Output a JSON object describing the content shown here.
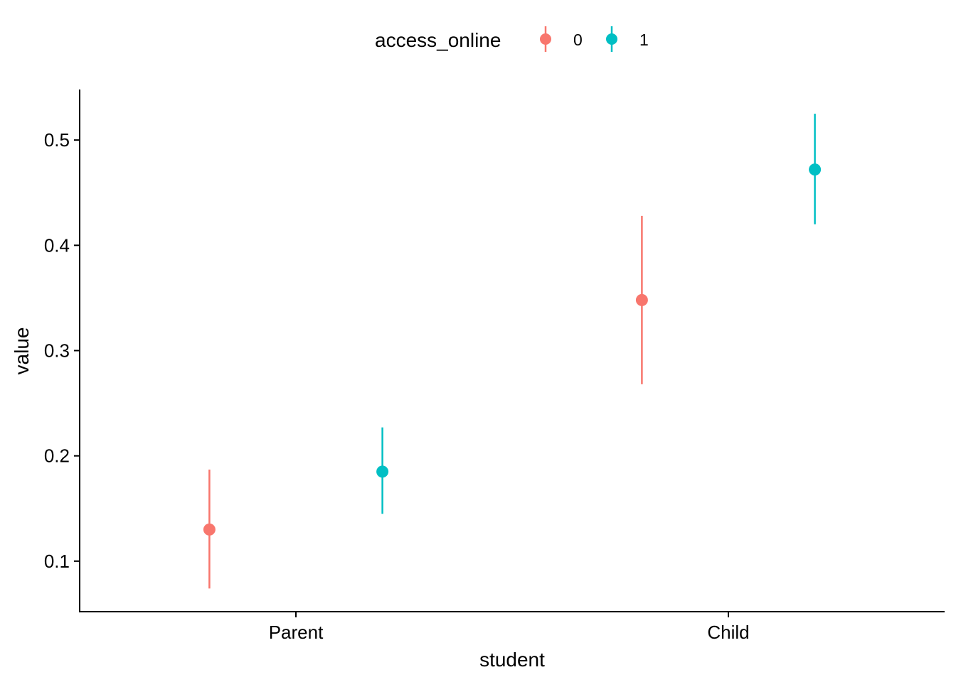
{
  "chart_data": {
    "type": "scatter",
    "subtype": "pointrange",
    "xlabel": "student",
    "ylabel": "value",
    "categories": [
      "Parent",
      "Child"
    ],
    "ylim": [
      0.052,
      0.548
    ],
    "yticks": [
      0.1,
      0.2,
      0.3,
      0.4,
      0.5
    ],
    "ytick_labels": [
      "0.1",
      "0.2",
      "0.3",
      "0.4",
      "0.5"
    ],
    "grid": false,
    "legend": {
      "title": "access_online",
      "position": "top",
      "entries": [
        "0",
        "1"
      ]
    },
    "series": [
      {
        "name": "0",
        "color": "#F8766D",
        "points": [
          {
            "category": "Parent",
            "y": 0.13,
            "ymin": 0.074,
            "ymax": 0.187
          },
          {
            "category": "Child",
            "y": 0.348,
            "ymin": 0.268,
            "ymax": 0.428
          }
        ]
      },
      {
        "name": "1",
        "color": "#00BFC4",
        "points": [
          {
            "category": "Parent",
            "y": 0.185,
            "ymin": 0.145,
            "ymax": 0.227
          },
          {
            "category": "Child",
            "y": 0.472,
            "ymin": 0.42,
            "ymax": 0.525
          }
        ]
      }
    ]
  }
}
